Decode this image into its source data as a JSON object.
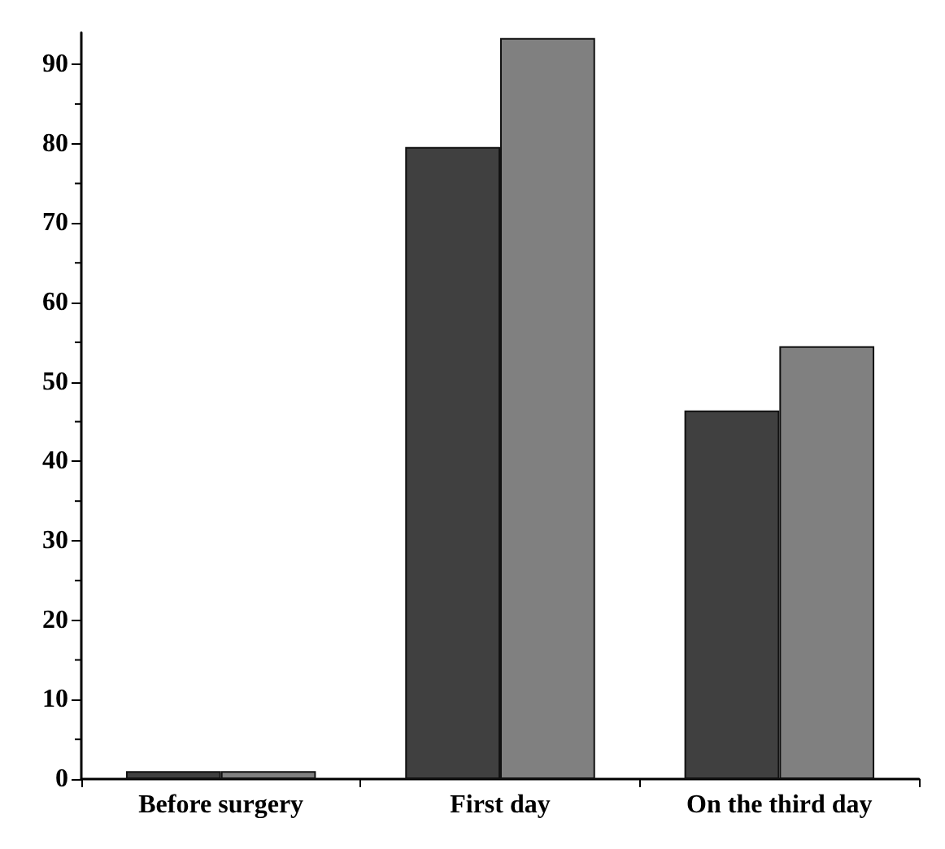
{
  "chart_data": {
    "type": "bar",
    "categories": [
      "Before surgery",
      "First day",
      "On the third day"
    ],
    "series": [
      {
        "color": "#404040",
        "values": [
          1,
          79.6,
          46.4
        ]
      },
      {
        "color": "#808080",
        "values": [
          1,
          93.3,
          54.5
        ]
      }
    ],
    "ylim": [
      0,
      94
    ],
    "yticks": [
      0,
      10,
      20,
      30,
      40,
      50,
      60,
      70,
      80,
      90
    ]
  }
}
